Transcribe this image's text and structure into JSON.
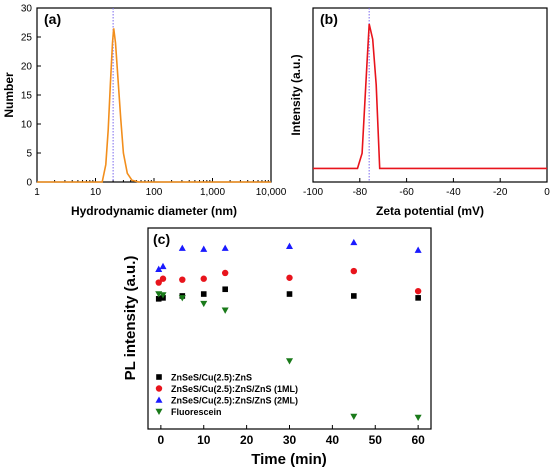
{
  "chart_data": [
    {
      "type": "line",
      "panel_label": "(a)",
      "xlabel": "Hydrodynamic diameter (nm)",
      "ylabel": "Number",
      "x_scale": "log",
      "xlim": [
        1,
        10000
      ],
      "ylim": [
        0,
        30
      ],
      "x_ticks": [
        {
          "value": 1,
          "label": "1"
        },
        {
          "value": 10,
          "label": "10"
        },
        {
          "value": 100,
          "label": "100"
        },
        {
          "value": 1000,
          "label": "1,000"
        },
        {
          "value": 10000,
          "label": "10,000"
        }
      ],
      "y_ticks": [
        0,
        5,
        10,
        15,
        20,
        25,
        30
      ],
      "reference_line_x": 20,
      "colors": {
        "series": "#f28e1c",
        "reference": "#7b68ee"
      },
      "series": [
        {
          "x": [
            1,
            10,
            13,
            15,
            16.5,
            18,
            19.5,
            20.5,
            22,
            24,
            27,
            30,
            35,
            42,
            55,
            10000
          ],
          "y": [
            0,
            0,
            0,
            3,
            9,
            17,
            24,
            26.5,
            24,
            18.5,
            11,
            5,
            1.5,
            0.3,
            0,
            0
          ]
        }
      ]
    },
    {
      "type": "line",
      "panel_label": "(b)",
      "xlabel": "Zeta potential (mV)",
      "ylabel": "Intensity (a.u.)",
      "xlim": [
        -100,
        0
      ],
      "x_ticks": [
        -100,
        -80,
        -60,
        -40,
        -20,
        0
      ],
      "reference_line_x": -76,
      "colors": {
        "series": "#e8141c",
        "reference": "#7b68ee"
      },
      "series": [
        {
          "x": [
            -100,
            -81,
            -79,
            -77,
            -76,
            -74.5,
            -73,
            -71.5,
            0
          ],
          "y": [
            0.05,
            0.05,
            0.15,
            0.72,
            1.0,
            0.9,
            0.6,
            0.05,
            0.05
          ]
        }
      ]
    },
    {
      "type": "scatter",
      "panel_label": "(c)",
      "xlabel": "Time (min)",
      "ylabel": "PL intensity (a.u.)",
      "xlim": [
        -3,
        63
      ],
      "ylim": [
        0,
        1.05
      ],
      "x_ticks": [
        0,
        10,
        20,
        30,
        40,
        50,
        60
      ],
      "legend_position": "lower-left",
      "series": [
        {
          "name": "ZnSeS/Cu(2.5):ZnS",
          "marker": "square",
          "color": "#000000",
          "x": [
            -0.5,
            0.5,
            5,
            10,
            15,
            30,
            45,
            60
          ],
          "y": [
            0.68,
            0.685,
            0.695,
            0.705,
            0.73,
            0.705,
            0.695,
            0.685
          ]
        },
        {
          "name": "ZnSeS/Cu(2.5):ZnS/ZnS (1ML)",
          "marker": "circle",
          "color": "#e8141c",
          "x": [
            -0.5,
            0.5,
            5,
            10,
            15,
            30,
            45,
            60
          ],
          "y": [
            0.765,
            0.785,
            0.78,
            0.785,
            0.815,
            0.79,
            0.825,
            0.72
          ]
        },
        {
          "name": "ZnSeS/Cu(2.5):ZnS/ZnS (2ML)",
          "marker": "triangle-up",
          "color": "#1a1aff",
          "x": [
            -0.5,
            0.5,
            5,
            10,
            15,
            30,
            45,
            60
          ],
          "y": [
            0.835,
            0.85,
            0.945,
            0.94,
            0.945,
            0.955,
            0.975,
            0.935
          ]
        },
        {
          "name": "Fluorescein",
          "marker": "triangle-down",
          "color": "#1a7a1a",
          "x": [
            -0.5,
            0.5,
            5,
            10,
            15,
            30,
            45,
            60
          ],
          "y": [
            0.705,
            0.7,
            0.685,
            0.655,
            0.62,
            0.355,
            0.065,
            0.06
          ]
        }
      ]
    }
  ]
}
